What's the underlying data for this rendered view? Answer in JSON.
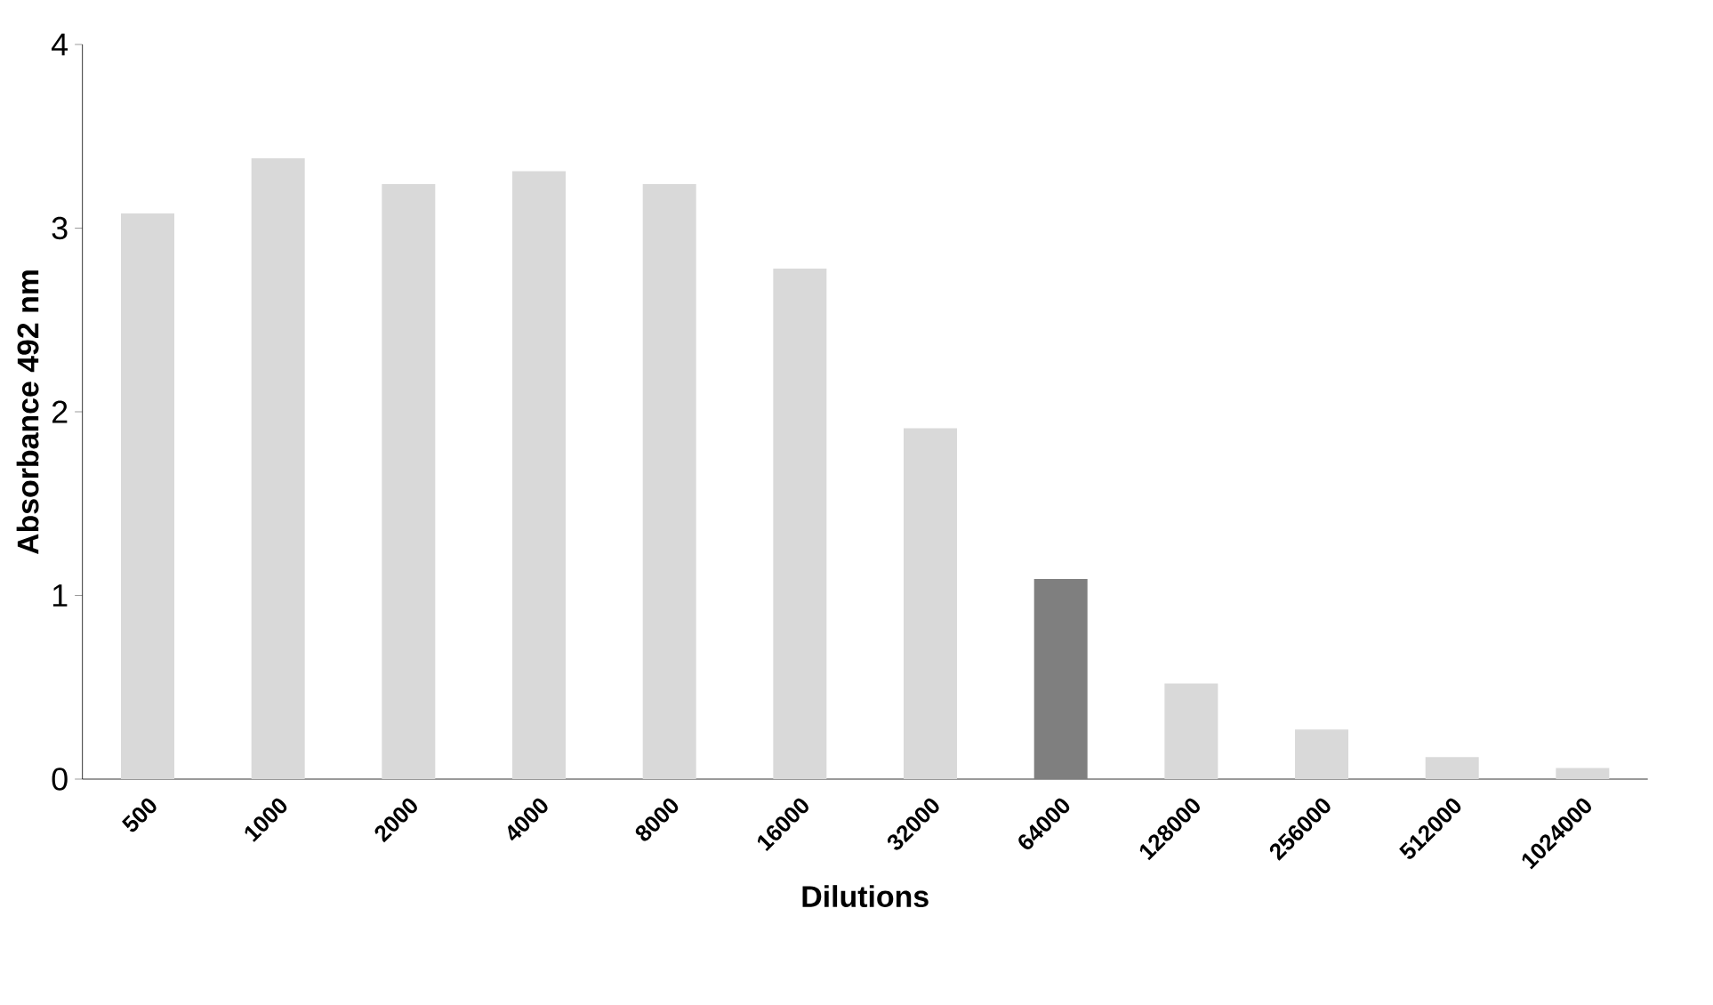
{
  "chart_data": {
    "type": "bar",
    "xlabel": "Dilutions",
    "ylabel": "Absorbance 492 nm",
    "categories": [
      "500",
      "1000",
      "2000",
      "4000",
      "8000",
      "16000",
      "32000",
      "64000",
      "128000",
      "256000",
      "512000",
      "1024000"
    ],
    "values": [
      3.08,
      3.38,
      3.24,
      3.31,
      3.24,
      2.78,
      1.91,
      1.09,
      0.52,
      0.27,
      0.12,
      0.06
    ],
    "colors": [
      "#d9d9d9",
      "#d9d9d9",
      "#d9d9d9",
      "#d9d9d9",
      "#d9d9d9",
      "#d9d9d9",
      "#d9d9d9",
      "#7f7f7f",
      "#d9d9d9",
      "#d9d9d9",
      "#d9d9d9",
      "#d9d9d9"
    ],
    "ylim": [
      0,
      4
    ],
    "yticks": [
      0,
      1,
      2,
      3,
      4
    ]
  }
}
